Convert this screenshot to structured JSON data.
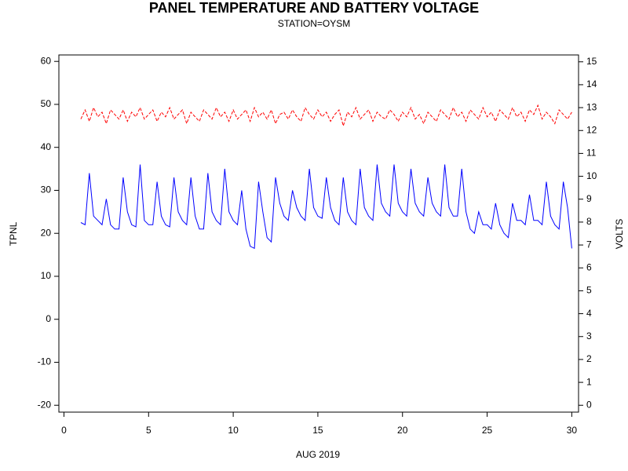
{
  "chart_data": {
    "type": "line",
    "title": "PANEL TEMPERATURE AND BATTERY VOLTAGE",
    "subtitle": "STATION=OYSM",
    "x_label": "AUG 2019",
    "y_label": "TPNL",
    "y2_label": "VOLTS",
    "xlim": [
      -0.3,
      30.4
    ],
    "xticks": [
      0,
      5,
      10,
      15,
      20,
      25,
      30
    ],
    "ylim": [
      -21.6,
      61.5
    ],
    "yticks": [
      -20,
      -10,
      0,
      10,
      20,
      30,
      40,
      50,
      60
    ],
    "y2lim": [
      -0.3,
      15.3
    ],
    "y2ticks": [
      0,
      1,
      2,
      3,
      4,
      5,
      6,
      7,
      8,
      9,
      10,
      11,
      12,
      13,
      14,
      15
    ],
    "x": [
      1,
      1.25,
      1.5,
      1.75,
      2,
      2.25,
      2.5,
      2.75,
      3,
      3.25,
      3.5,
      3.75,
      4,
      4.25,
      4.5,
      4.75,
      5,
      5.25,
      5.5,
      5.75,
      6,
      6.25,
      6.5,
      6.75,
      7,
      7.25,
      7.5,
      7.75,
      8,
      8.25,
      8.5,
      8.75,
      9,
      9.25,
      9.5,
      9.75,
      10,
      10.25,
      10.5,
      10.75,
      11,
      11.25,
      11.5,
      11.75,
      12,
      12.25,
      12.5,
      12.75,
      13,
      13.25,
      13.5,
      13.75,
      14,
      14.25,
      14.5,
      14.75,
      15,
      15.25,
      15.5,
      15.75,
      16,
      16.25,
      16.5,
      16.75,
      17,
      17.25,
      17.5,
      17.75,
      18,
      18.25,
      18.5,
      18.75,
      19,
      19.25,
      19.5,
      19.75,
      20,
      20.25,
      20.5,
      20.75,
      21,
      21.25,
      21.5,
      21.75,
      22,
      22.25,
      22.5,
      22.75,
      23,
      23.25,
      23.5,
      23.75,
      24,
      24.25,
      24.5,
      24.75,
      25,
      25.25,
      25.5,
      25.75,
      26,
      26.25,
      26.5,
      26.75,
      27,
      27.25,
      27.5,
      27.75,
      28,
      28.25,
      28.5,
      28.75,
      29,
      29.25,
      29.5,
      29.75,
      30
    ],
    "series": [
      {
        "name": "TPNL",
        "color": "#0000ff",
        "axis": "y",
        "dash": false,
        "values": [
          22.5,
          22,
          34,
          24,
          23,
          22,
          28,
          22,
          21,
          21,
          33,
          25,
          22,
          21.5,
          36,
          23,
          22,
          22,
          32,
          24,
          22,
          21.5,
          33,
          25,
          23,
          22,
          33,
          24,
          21,
          21,
          34,
          25,
          23,
          22,
          35,
          25,
          23,
          22,
          30,
          21,
          17,
          16.5,
          32,
          25,
          19,
          18,
          33,
          27,
          24,
          23,
          30,
          26,
          24,
          23,
          35,
          26,
          24,
          23.5,
          33,
          26,
          23,
          22,
          33,
          25,
          23,
          22,
          35,
          26,
          24,
          23,
          36,
          27,
          25,
          24,
          36,
          27,
          25,
          24,
          35,
          27,
          25,
          24,
          33,
          27,
          25,
          24,
          36,
          26,
          24,
          24,
          35,
          25,
          21,
          20,
          25,
          22,
          22,
          21,
          27,
          22,
          20,
          19,
          27,
          23,
          23,
          22,
          29,
          23,
          23,
          22,
          32,
          24,
          22,
          21,
          32,
          26,
          16.5
        ]
      },
      {
        "name": "VOLTS",
        "color": "#ff0000",
        "axis": "y2",
        "dash": true,
        "values": [
          12.5,
          12.9,
          12.4,
          13.0,
          12.6,
          12.8,
          12.3,
          12.9,
          12.7,
          12.5,
          12.9,
          12.4,
          12.8,
          12.6,
          13.0,
          12.5,
          12.7,
          12.9,
          12.4,
          12.8,
          12.6,
          13.0,
          12.5,
          12.7,
          12.9,
          12.3,
          12.8,
          12.6,
          12.4,
          12.9,
          12.7,
          12.5,
          13.0,
          12.6,
          12.8,
          12.4,
          12.9,
          12.5,
          12.7,
          12.9,
          12.4,
          13.0,
          12.6,
          12.8,
          12.5,
          12.9,
          12.3,
          12.7,
          12.8,
          12.5,
          12.9,
          12.6,
          12.4,
          13.0,
          12.7,
          12.5,
          12.9,
          12.6,
          12.8,
          12.4,
          12.7,
          12.9,
          12.2,
          12.8,
          12.6,
          13.0,
          12.5,
          12.7,
          12.9,
          12.4,
          12.8,
          12.6,
          12.5,
          12.9,
          12.7,
          12.4,
          12.8,
          12.6,
          13.0,
          12.5,
          12.7,
          12.3,
          12.8,
          12.6,
          12.4,
          12.9,
          12.7,
          12.5,
          13.0,
          12.6,
          12.8,
          12.4,
          12.9,
          12.7,
          12.5,
          13.0,
          12.6,
          12.8,
          12.4,
          12.9,
          12.7,
          12.5,
          13.0,
          12.6,
          12.8,
          12.4,
          12.9,
          12.7,
          13.1,
          12.5,
          12.8,
          12.6,
          12.3,
          12.9,
          12.7,
          12.5,
          12.8
        ]
      }
    ]
  }
}
